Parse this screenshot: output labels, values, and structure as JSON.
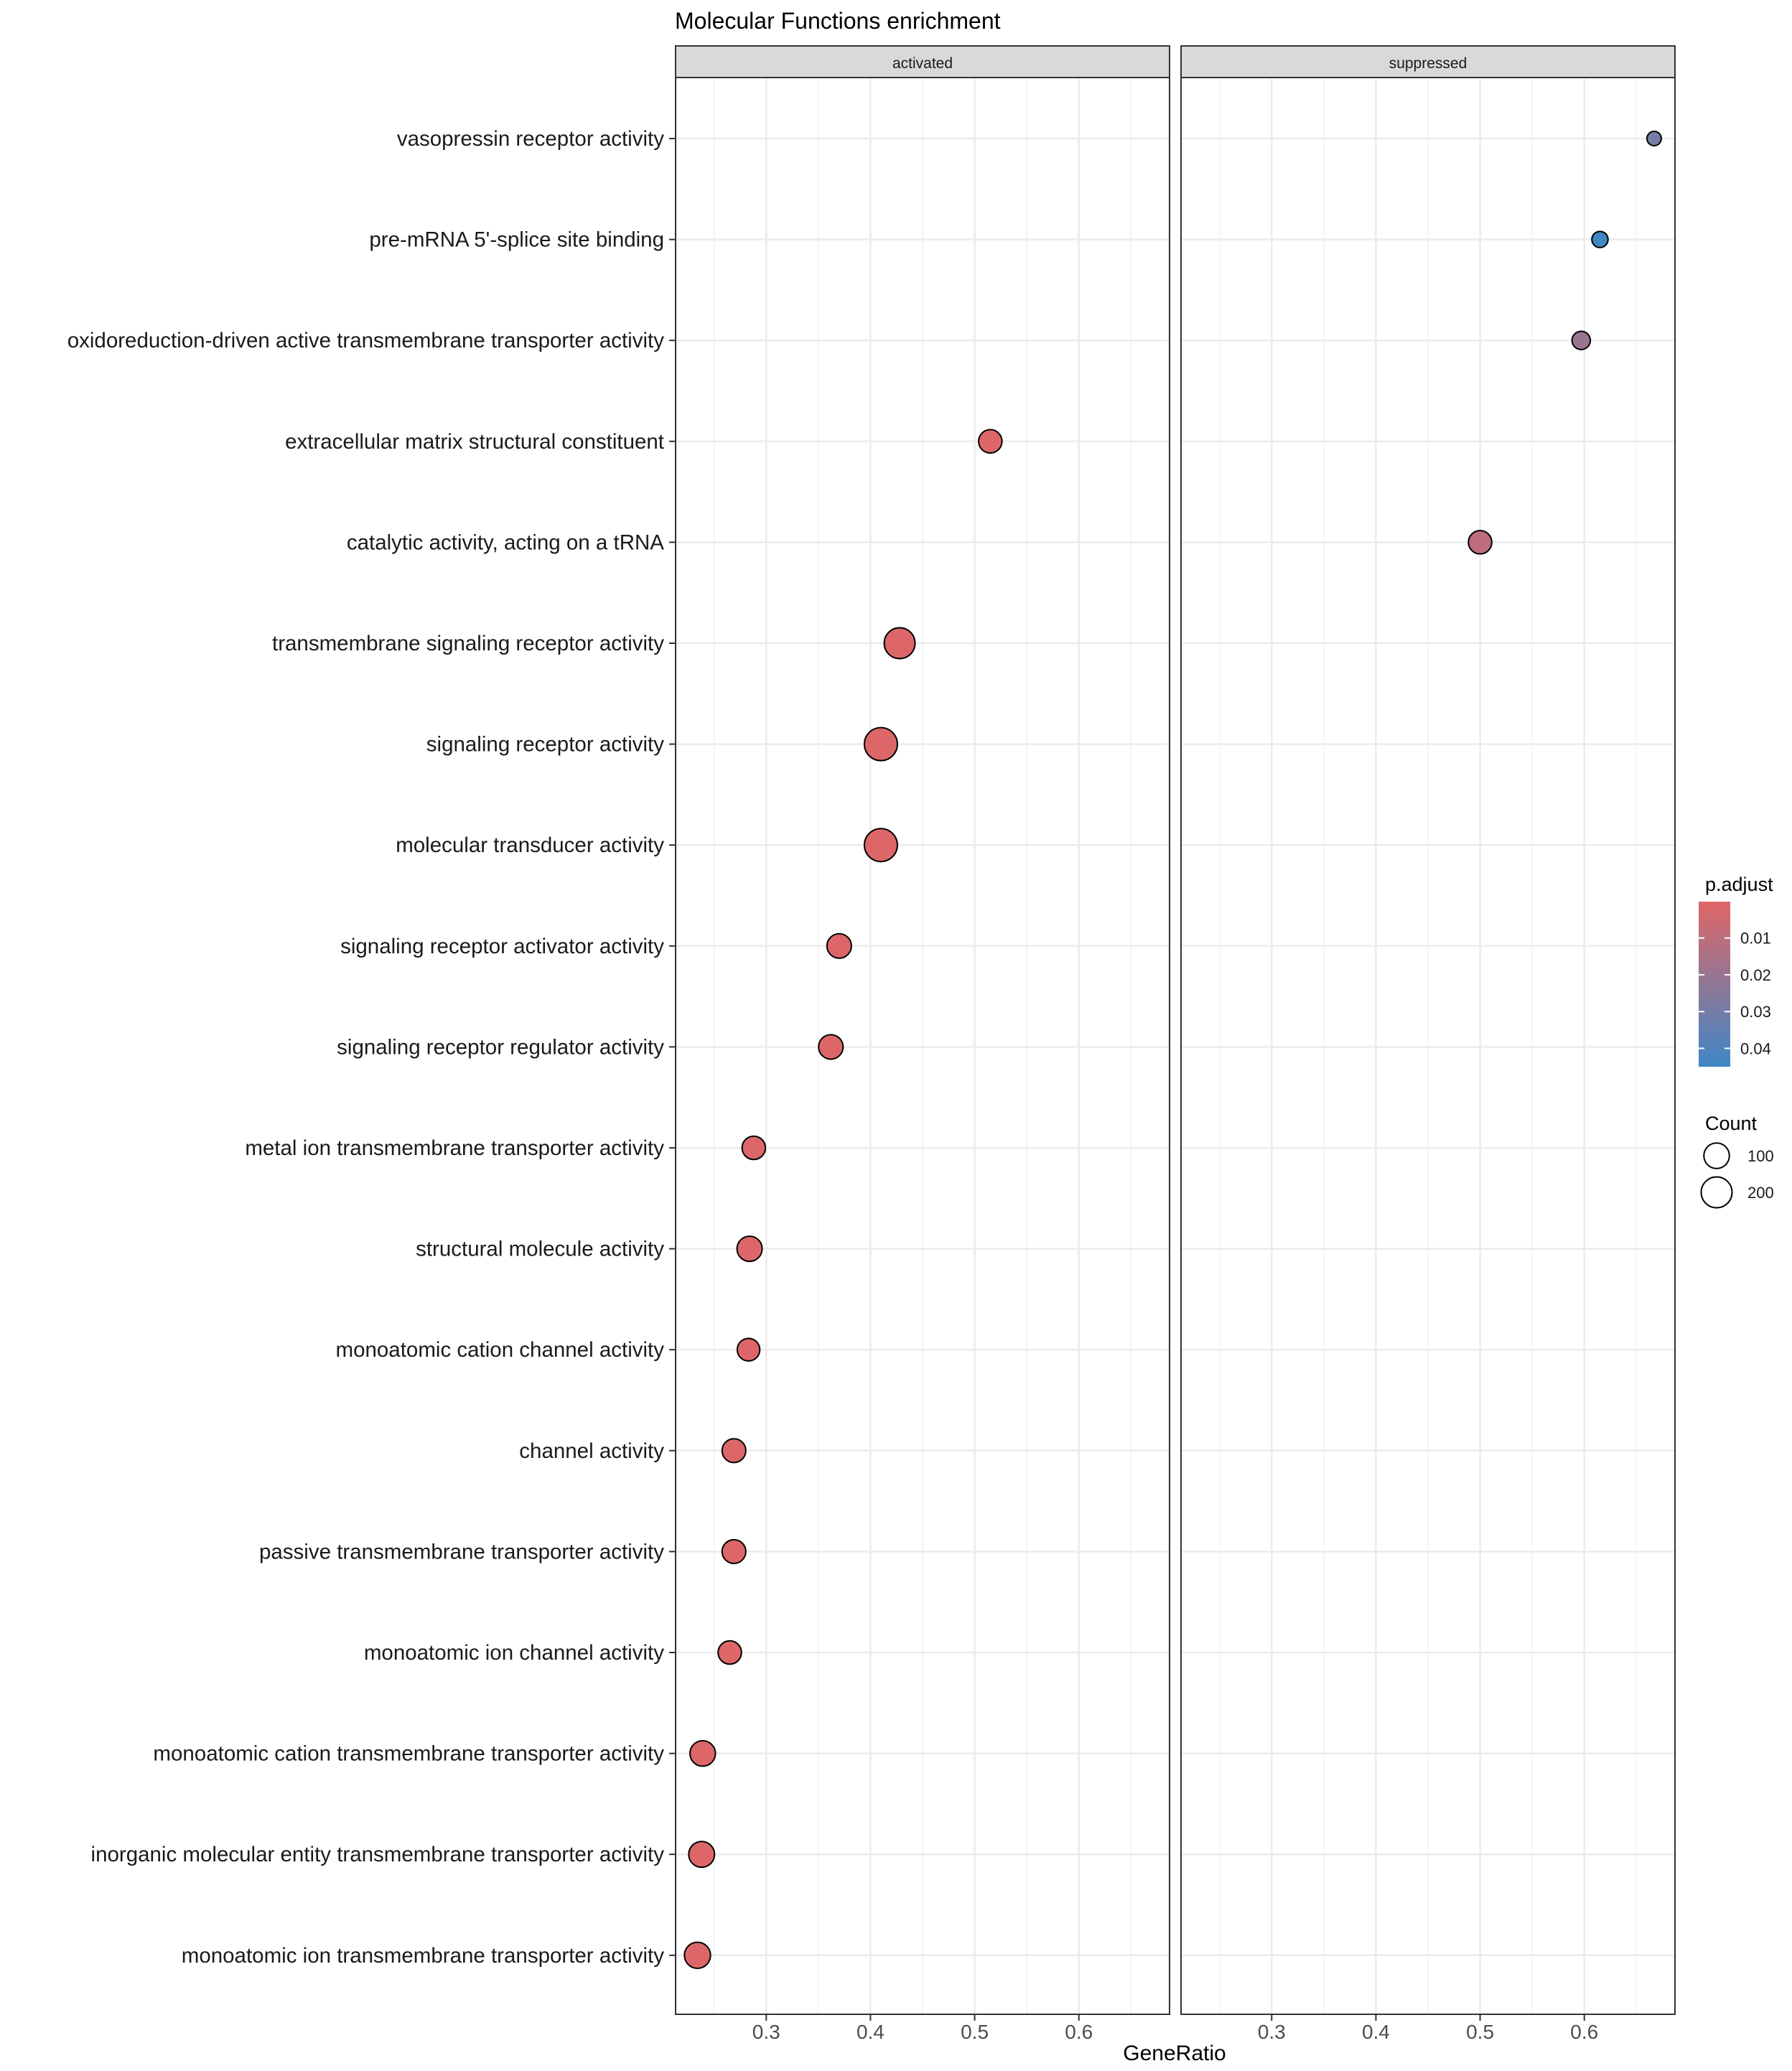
{
  "chart_data": {
    "type": "scatter",
    "title": "Molecular Functions enrichment",
    "xlabel": "GeneRatio",
    "ylabel": "",
    "xlim": [
      0.213,
      0.687
    ],
    "x_ticks": [
      0.3,
      0.4,
      0.5,
      0.6
    ],
    "x_tick_labels": [
      "0.3",
      "0.4",
      "0.5",
      "0.6"
    ],
    "grid": true,
    "legend_position": "right",
    "facets": [
      "activated",
      "suppressed"
    ],
    "categories": [
      "vasopressin receptor activity",
      "pre-mRNA 5'-splice site binding",
      "oxidoreduction-driven active transmembrane transporter activity",
      "extracellular matrix structural constituent",
      "catalytic activity, acting on a tRNA",
      "transmembrane signaling receptor activity",
      "signaling receptor activity",
      "molecular transducer activity",
      "signaling receptor activator activity",
      "signaling receptor regulator activity",
      "metal ion transmembrane transporter activity",
      "structural molecule activity",
      "monoatomic cation channel activity",
      "channel activity",
      "passive transmembrane transporter activity",
      "monoatomic ion channel activity",
      "monoatomic cation transmembrane transporter activity",
      "inorganic molecular entity transmembrane transporter activity",
      "monoatomic ion transmembrane transporter activity"
    ],
    "points": [
      {
        "facet": "suppressed",
        "term": "vasopressin receptor activity",
        "gene_ratio": 0.667,
        "count": 2,
        "p_adjust": 0.03
      },
      {
        "facet": "suppressed",
        "term": "pre-mRNA 5'-splice site binding",
        "gene_ratio": 0.615,
        "count": 8,
        "p_adjust": 0.045
      },
      {
        "facet": "suppressed",
        "term": "oxidoreduction-driven active transmembrane transporter activity",
        "gene_ratio": 0.597,
        "count": 20,
        "p_adjust": 0.02
      },
      {
        "facet": "activated",
        "term": "extracellular matrix structural constituent",
        "gene_ratio": 0.515,
        "count": 70,
        "p_adjust": 0.001
      },
      {
        "facet": "suppressed",
        "term": "catalytic activity, acting on a tRNA",
        "gene_ratio": 0.5,
        "count": 70,
        "p_adjust": 0.01
      },
      {
        "facet": "activated",
        "term": "transmembrane signaling receptor activity",
        "gene_ratio": 0.428,
        "count": 200,
        "p_adjust": 0.001
      },
      {
        "facet": "activated",
        "term": "signaling receptor activity",
        "gene_ratio": 0.41,
        "count": 250,
        "p_adjust": 0.001
      },
      {
        "facet": "activated",
        "term": "molecular transducer activity",
        "gene_ratio": 0.41,
        "count": 250,
        "p_adjust": 0.001
      },
      {
        "facet": "activated",
        "term": "signaling receptor activator activity",
        "gene_ratio": 0.37,
        "count": 85,
        "p_adjust": 0.001
      },
      {
        "facet": "activated",
        "term": "signaling receptor regulator activity",
        "gene_ratio": 0.362,
        "count": 85,
        "p_adjust": 0.001
      },
      {
        "facet": "activated",
        "term": "metal ion transmembrane transporter activity",
        "gene_ratio": 0.288,
        "count": 70,
        "p_adjust": 0.001
      },
      {
        "facet": "activated",
        "term": "structural molecule activity",
        "gene_ratio": 0.284,
        "count": 95,
        "p_adjust": 0.001
      },
      {
        "facet": "activated",
        "term": "monoatomic cation channel activity",
        "gene_ratio": 0.283,
        "count": 60,
        "p_adjust": 0.001
      },
      {
        "facet": "activated",
        "term": "channel activity",
        "gene_ratio": 0.269,
        "count": 75,
        "p_adjust": 0.001
      },
      {
        "facet": "activated",
        "term": "passive transmembrane transporter activity",
        "gene_ratio": 0.269,
        "count": 75,
        "p_adjust": 0.001
      },
      {
        "facet": "activated",
        "term": "monoatomic ion channel activity",
        "gene_ratio": 0.265,
        "count": 70,
        "p_adjust": 0.001
      },
      {
        "facet": "activated",
        "term": "monoatomic cation transmembrane transporter activity",
        "gene_ratio": 0.239,
        "count": 100,
        "p_adjust": 0.001
      },
      {
        "facet": "activated",
        "term": "inorganic molecular entity transmembrane transporter activity",
        "gene_ratio": 0.238,
        "count": 105,
        "p_adjust": 0.001
      },
      {
        "facet": "activated",
        "term": "monoatomic ion transmembrane transporter activity",
        "gene_ratio": 0.234,
        "count": 110,
        "p_adjust": 0.001
      }
    ],
    "legend_color": {
      "title": "p.adjust",
      "range": [
        0.0001,
        0.045
      ],
      "ticks": [
        0.01,
        0.02,
        0.03,
        0.04
      ],
      "tick_labels": [
        "0.01",
        "0.02",
        "0.03",
        "0.04"
      ],
      "low_color": "#E06666",
      "high_color": "#3F87C6"
    },
    "legend_size": {
      "title": "Count",
      "values": [
        100,
        200
      ],
      "labels": [
        "100",
        "200"
      ]
    }
  }
}
